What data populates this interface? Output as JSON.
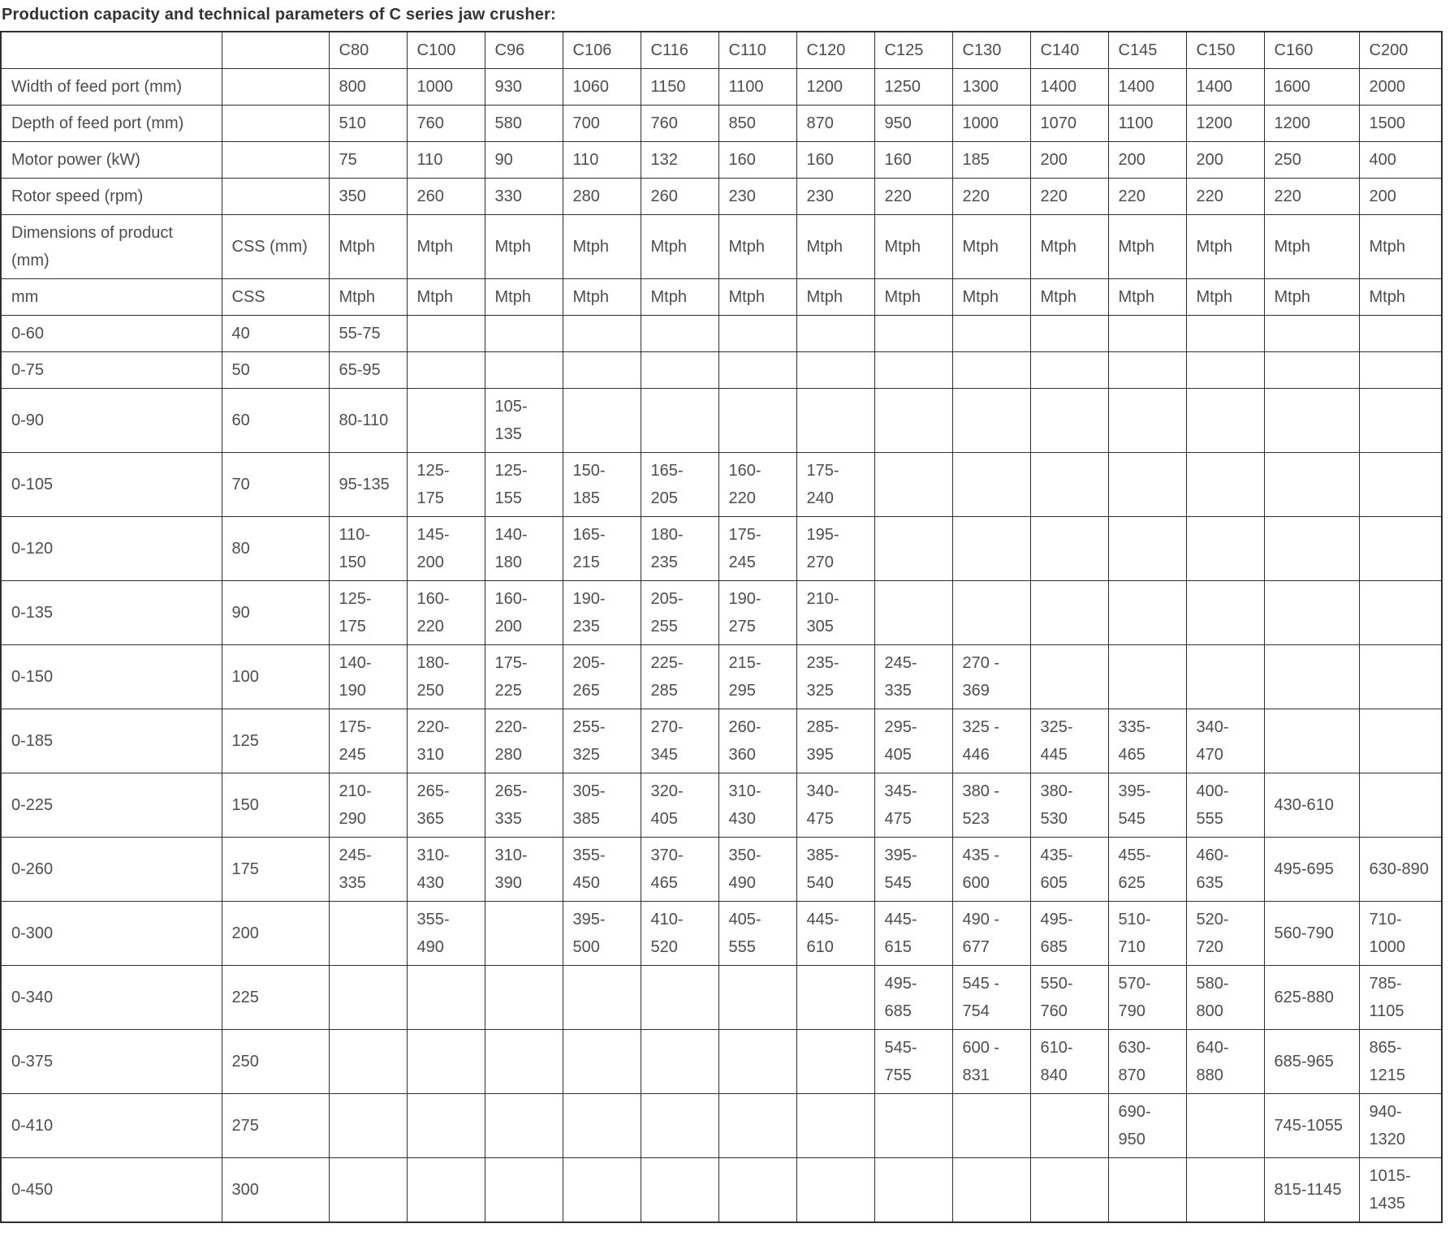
{
  "title": "Production capacity and technical parameters of C series jaw crusher:",
  "table": {
    "corner_cells": [
      "",
      ""
    ],
    "columns": [
      "C80",
      "C100",
      "C96",
      "C106",
      "C116",
      "C110",
      "C120",
      "C125",
      "C130",
      "C140",
      "C145",
      "C150",
      "C160",
      "C200"
    ],
    "param_rows": [
      {
        "label": "Width of feed port (mm)",
        "css": "",
        "values": [
          "800",
          "1000",
          "930",
          "1060",
          "1150",
          "1100",
          "1200",
          "1250",
          "1300",
          "1400",
          "1400",
          "1400",
          "1600",
          "2000"
        ]
      },
      {
        "label": "Depth of feed port (mm)",
        "css": "",
        "values": [
          "510",
          "760",
          "580",
          "700",
          "760",
          "850",
          "870",
          "950",
          "1000",
          "1070",
          "1100",
          "1200",
          "1200",
          "1500"
        ]
      },
      {
        "label": "Motor power (kW)",
        "css": "",
        "values": [
          "75",
          "110",
          "90",
          "110",
          "132",
          "160",
          "160",
          "160",
          "185",
          "200",
          "200",
          "200",
          "250",
          "400"
        ]
      },
      {
        "label": "Rotor speed (rpm)",
        "css": "",
        "values": [
          "350",
          "260",
          "330",
          "280",
          "260",
          "230",
          "230",
          "220",
          "220",
          "220",
          "220",
          "220",
          "220",
          "200"
        ]
      }
    ],
    "unit_rows": [
      {
        "label": "Dimensions of product (mm)",
        "css": "CSS (mm)",
        "values": [
          "Mtph",
          "Mtph",
          "Mtph",
          "Mtph",
          "Mtph",
          "Mtph",
          "Mtph",
          "Mtph",
          "Mtph",
          "Mtph",
          "Mtph",
          "Mtph",
          "Mtph",
          "Mtph"
        ]
      },
      {
        "label": "mm",
        "css": "CSS",
        "values": [
          "Mtph",
          "Mtph",
          "Mtph",
          "Mtph",
          "Mtph",
          "Mtph",
          "Mtph",
          "Mtph",
          "Mtph",
          "Mtph",
          "Mtph",
          "Mtph",
          "Mtph",
          "Mtph"
        ]
      }
    ],
    "capacity_rows": [
      {
        "label": "0-60",
        "css": "40",
        "values": [
          "55-75",
          "",
          "",
          "",
          "",
          "",
          "",
          "",
          "",
          "",
          "",
          "",
          "",
          ""
        ]
      },
      {
        "label": "0-75",
        "css": "50",
        "values": [
          "65-95",
          "",
          "",
          "",
          "",
          "",
          "",
          "",
          "",
          "",
          "",
          "",
          "",
          ""
        ]
      },
      {
        "label": "0-90",
        "css": "60",
        "values": [
          "80-110",
          "",
          "105-135",
          "",
          "",
          "",
          "",
          "",
          "",
          "",
          "",
          "",
          "",
          ""
        ]
      },
      {
        "label": "0-105",
        "css": "70",
        "values": [
          "95-135",
          "125-175",
          "125-155",
          "150-185",
          "165-205",
          "160-220",
          "175-240",
          "",
          "",
          "",
          "",
          "",
          "",
          ""
        ]
      },
      {
        "label": "0-120",
        "css": "80",
        "values": [
          "110-150",
          "145-200",
          "140-180",
          "165-215",
          "180-235",
          "175-245",
          "195-270",
          "",
          "",
          "",
          "",
          "",
          "",
          ""
        ]
      },
      {
        "label": "0-135",
        "css": "90",
        "values": [
          "125-175",
          "160-220",
          "160-200",
          "190-235",
          "205-255",
          "190-275",
          "210-305",
          "",
          "",
          "",
          "",
          "",
          "",
          ""
        ]
      },
      {
        "label": "0-150",
        "css": "100",
        "values": [
          "140-190",
          "180-250",
          "175-225",
          "205-265",
          "225-285",
          "215-295",
          "235-325",
          "245-335",
          "270 - 369",
          "",
          "",
          "",
          "",
          ""
        ]
      },
      {
        "label": "0-185",
        "css": "125",
        "values": [
          "175-245",
          "220-310",
          "220-280",
          "255-325",
          "270-345",
          "260-360",
          "285-395",
          "295-405",
          "325 - 446",
          "325-445",
          "335-465",
          "340-470",
          "",
          ""
        ]
      },
      {
        "label": "0-225",
        "css": "150",
        "values": [
          "210-290",
          "265-365",
          "265-335",
          "305-385",
          "320-405",
          "310-430",
          "340-475",
          "345-475",
          "380 - 523",
          "380-530",
          "395-545",
          "400-555",
          "430-610",
          ""
        ]
      },
      {
        "label": "0-260",
        "css": "175",
        "values": [
          "245-335",
          "310-430",
          "310-390",
          "355-450",
          "370-465",
          "350-490",
          "385-540",
          "395-545",
          "435 - 600",
          "435-605",
          "455-625",
          "460-635",
          "495-695",
          "630-890"
        ]
      },
      {
        "label": "0-300",
        "css": "200",
        "values": [
          "",
          "355-490",
          "",
          "395-500",
          "410-520",
          "405-555",
          "445-610",
          "445-615",
          "490 - 677",
          "495-685",
          "510-710",
          "520-720",
          "560-790",
          "710-1000"
        ]
      },
      {
        "label": "0-340",
        "css": "225",
        "values": [
          "",
          "",
          "",
          "",
          "",
          "",
          "",
          "495-685",
          "545 - 754",
          "550-760",
          "570-790",
          "580-800",
          "625-880",
          "785-1105"
        ]
      },
      {
        "label": "0-375",
        "css": "250",
        "values": [
          "",
          "",
          "",
          "",
          "",
          "",
          "",
          "545-755",
          "600 - 831",
          "610-840",
          "630-870",
          "640-880",
          "685-965",
          "865-1215"
        ]
      },
      {
        "label": "0-410",
        "css": "275",
        "values": [
          "",
          "",
          "",
          "",
          "",
          "",
          "",
          "",
          "",
          "",
          "690-950",
          "",
          "745-1055",
          "940-1320"
        ]
      },
      {
        "label": "0-450",
        "css": "300",
        "values": [
          "",
          "",
          "",
          "",
          "",
          "",
          "",
          "",
          "",
          "",
          "",
          "",
          "815-1145",
          "1015-1435"
        ]
      }
    ]
  }
}
